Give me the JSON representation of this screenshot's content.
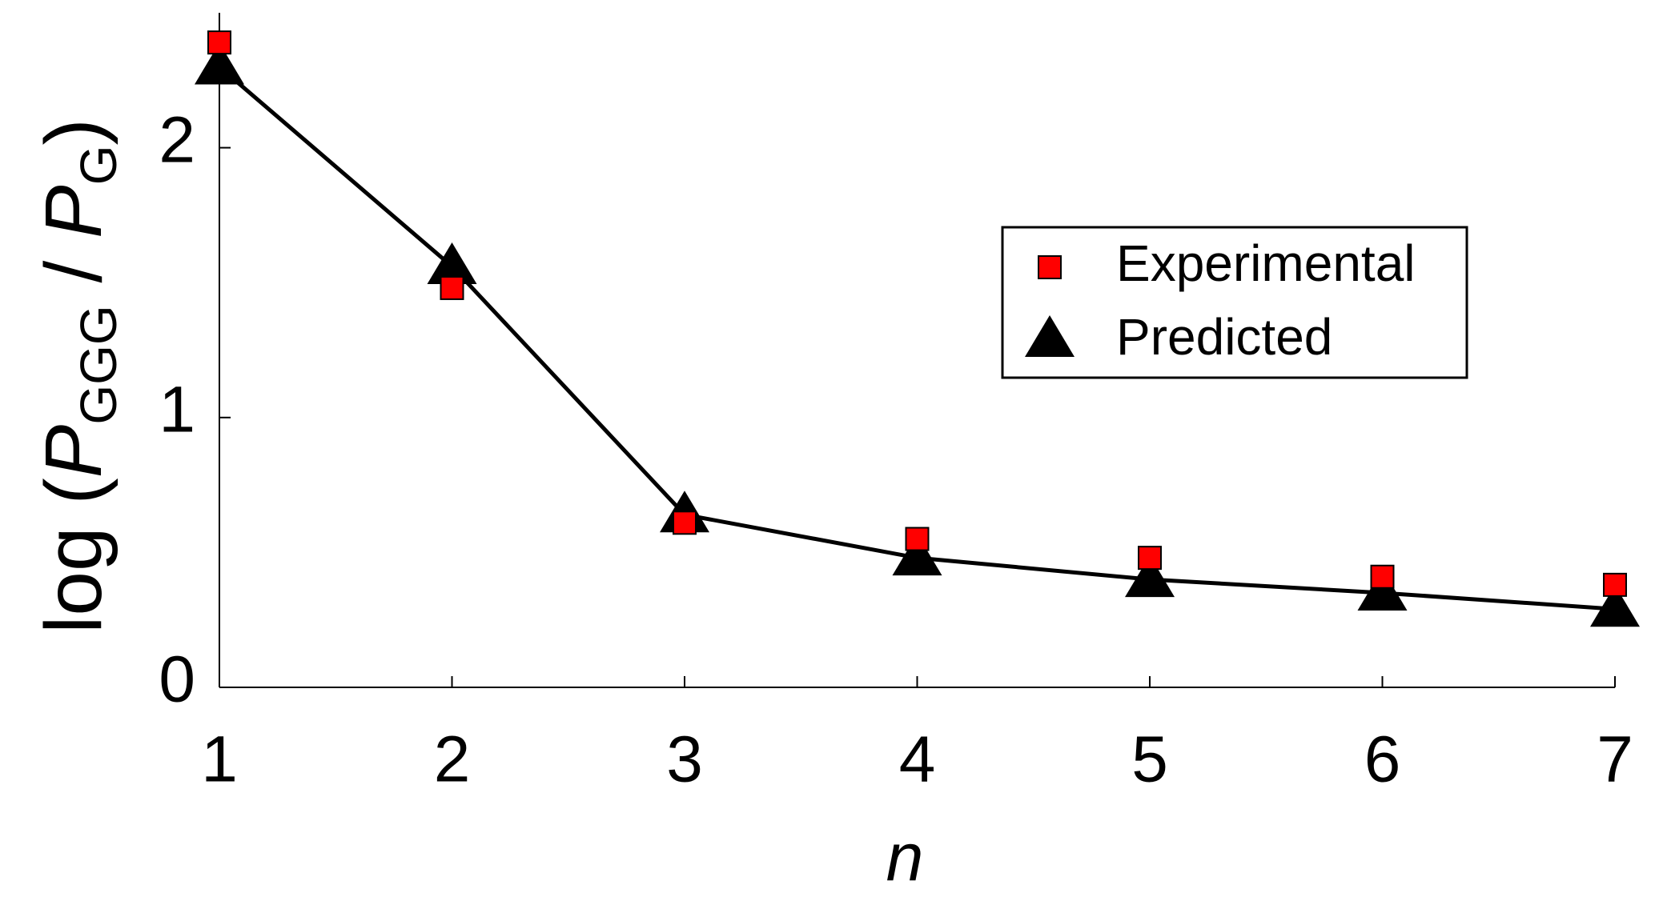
{
  "chart_data": {
    "type": "line",
    "x_label": "n",
    "y_label": [
      "log (",
      "P",
      "GGG",
      " / ",
      "P",
      "G",
      ")"
    ],
    "x": [
      1,
      2,
      3,
      4,
      5,
      6,
      7
    ],
    "xlim": [
      1,
      7
    ],
    "xticks": [
      1,
      2,
      3,
      4,
      5,
      6,
      7
    ],
    "ylim": [
      0,
      2.5
    ],
    "yticks": [
      0,
      1,
      2
    ],
    "series": [
      {
        "name": "Experimental",
        "color": "#ff0000",
        "marker": "square",
        "line": false,
        "values": [
          2.39,
          1.48,
          0.61,
          0.55,
          0.48,
          0.41,
          0.38
        ]
      },
      {
        "name": "Predicted",
        "color": "#000000",
        "marker": "triangle",
        "line": true,
        "values": [
          2.3,
          1.56,
          0.64,
          0.48,
          0.4,
          0.35,
          0.29
        ]
      }
    ]
  }
}
